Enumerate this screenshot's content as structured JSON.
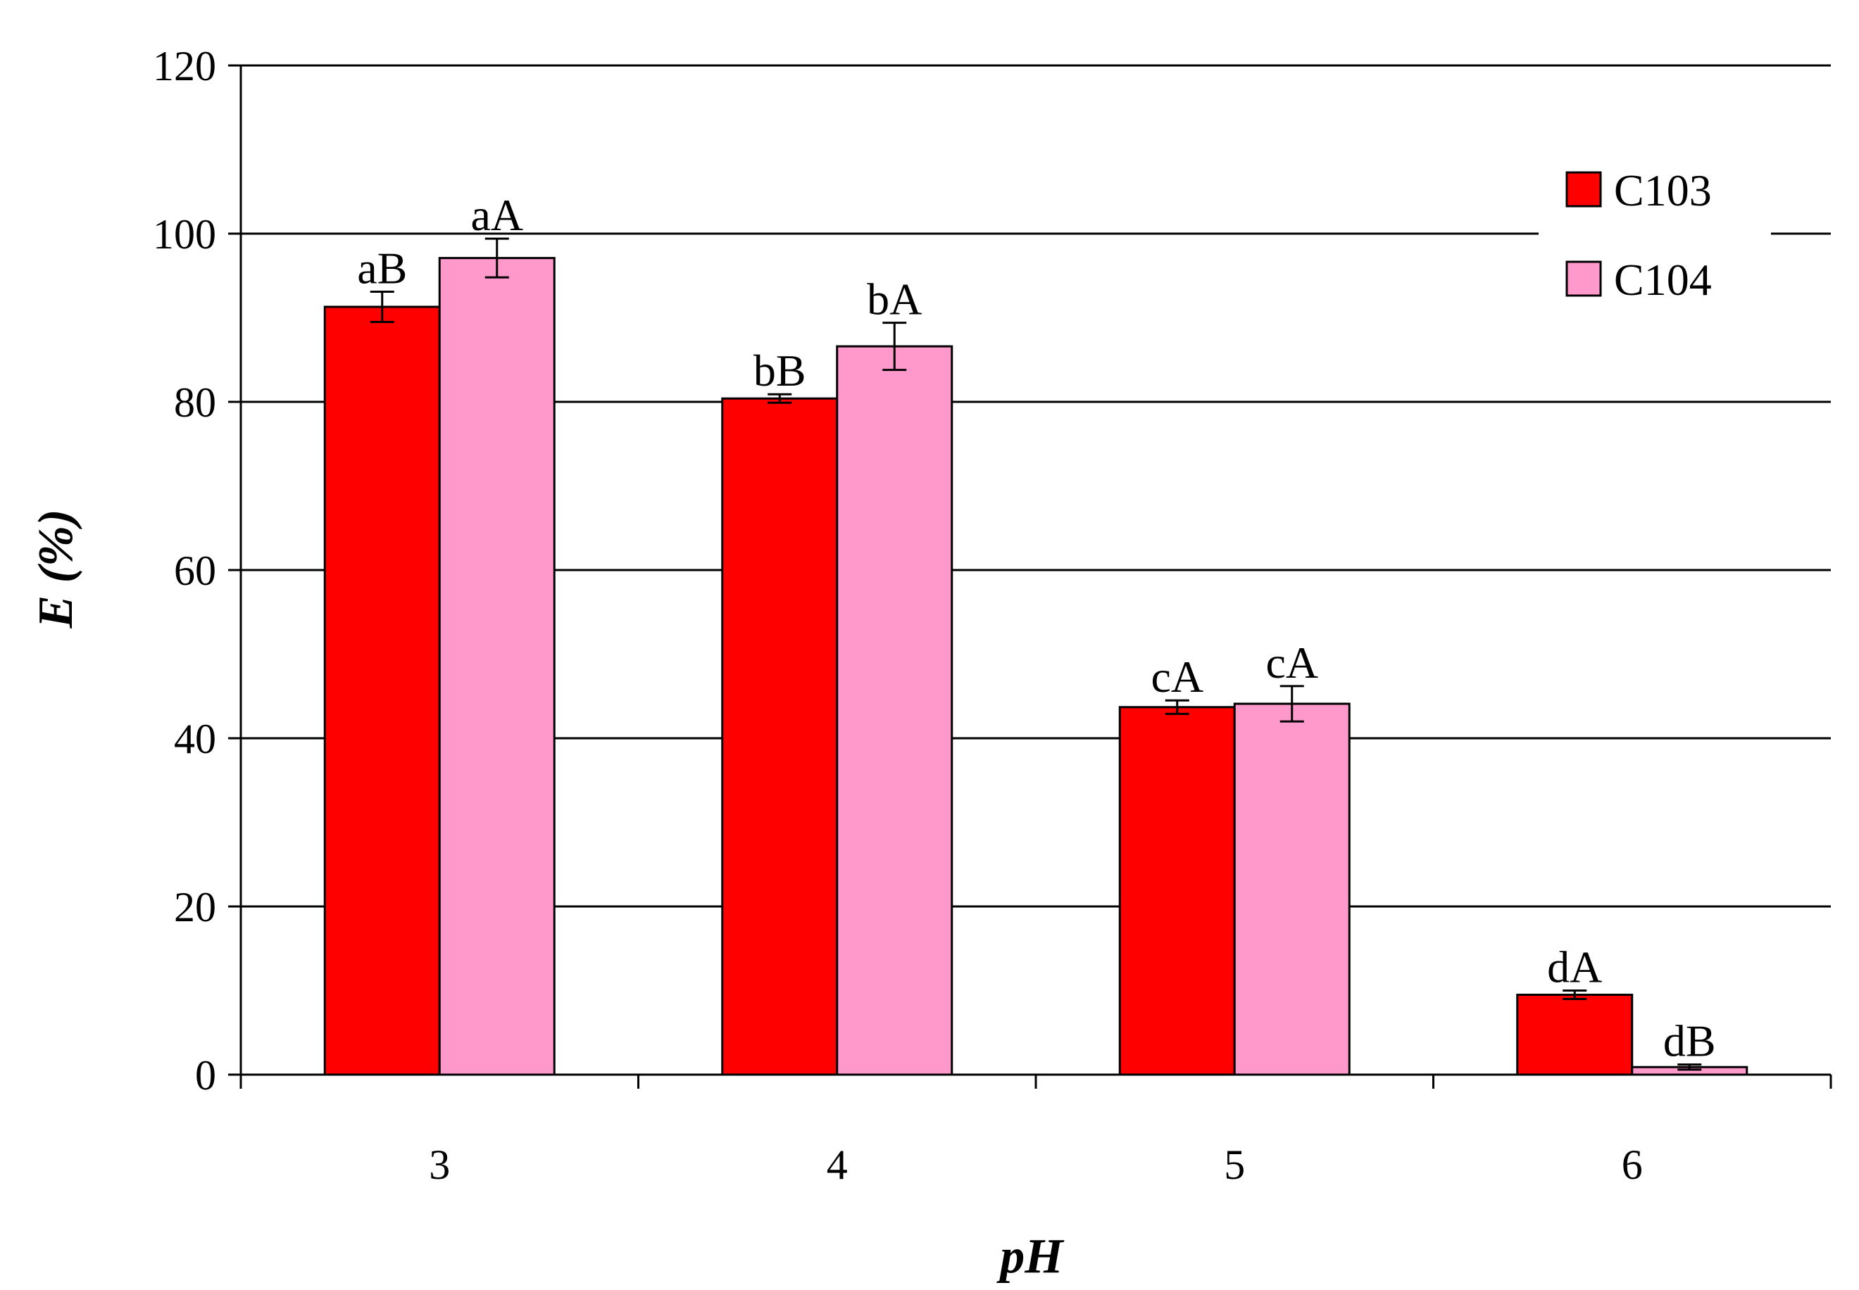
{
  "chart_data": {
    "type": "bar",
    "xlabel": "pH",
    "ylabel": "E (%)",
    "categories": [
      "3",
      "4",
      "5",
      "6"
    ],
    "ylim": [
      0,
      120
    ],
    "yticks": [
      "0",
      "20",
      "40",
      "60",
      "80",
      "100",
      "120"
    ],
    "grid": true,
    "legend_position": "top-right",
    "series": [
      {
        "name": "C103",
        "color": "#ff0000",
        "values": [
          91.3,
          80.4,
          43.7,
          9.5
        ],
        "errors": [
          1.8,
          0.5,
          0.8,
          0.5
        ],
        "labels": [
          "aB",
          "bB",
          "cA",
          "dA"
        ]
      },
      {
        "name": "C104",
        "color": "#ff99cc",
        "values": [
          97.1,
          86.6,
          44.1,
          0.9
        ],
        "errors": [
          2.3,
          2.8,
          2.1,
          0.3
        ],
        "labels": [
          "aA",
          "bA",
          "cA",
          "dB"
        ]
      }
    ]
  }
}
